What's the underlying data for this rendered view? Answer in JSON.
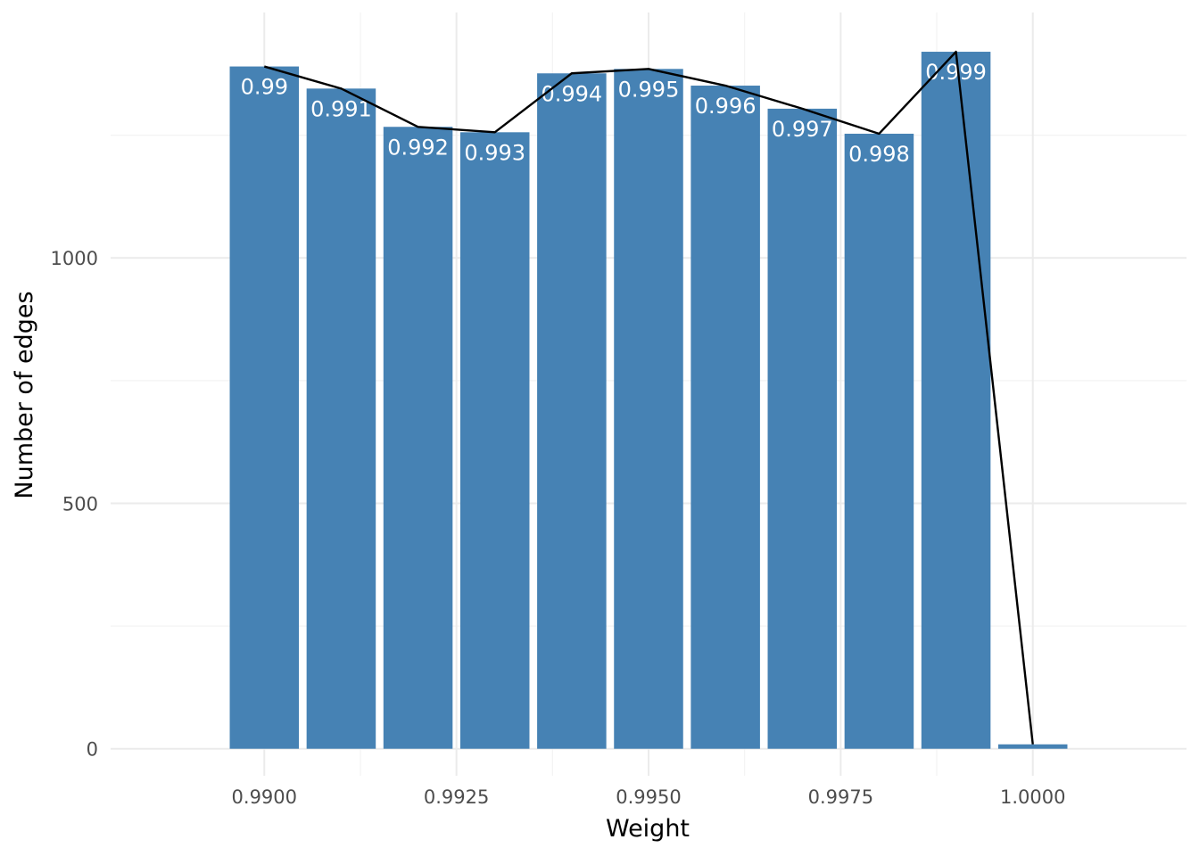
{
  "chart_data": {
    "type": "bar",
    "xlabel": "Weight",
    "ylabel": "Number of edges",
    "xlim": [
      0.988,
      1.002
    ],
    "ylim": [
      -55,
      1500
    ],
    "x_ticks": [
      "0.9900",
      "0.9925",
      "0.9950",
      "0.9975",
      "1.0000"
    ],
    "x_tick_values": [
      0.99,
      0.9925,
      0.995,
      0.9975,
      1.0
    ],
    "y_ticks": [
      "0",
      "500",
      "1000"
    ],
    "y_tick_values": [
      0,
      500,
      1000
    ],
    "grid": true,
    "bar_color": "#4682b4",
    "line_color": "#000000",
    "bar_width": 0.0009,
    "bars": [
      {
        "x": 0.99,
        "value": 1390,
        "label": "0.99"
      },
      {
        "x": 0.991,
        "value": 1345,
        "label": "0.991"
      },
      {
        "x": 0.992,
        "value": 1267,
        "label": "0.992"
      },
      {
        "x": 0.993,
        "value": 1256,
        "label": "0.993"
      },
      {
        "x": 0.994,
        "value": 1376,
        "label": "0.994"
      },
      {
        "x": 0.995,
        "value": 1385,
        "label": "0.995"
      },
      {
        "x": 0.996,
        "value": 1351,
        "label": "0.996"
      },
      {
        "x": 0.997,
        "value": 1304,
        "label": "0.997"
      },
      {
        "x": 0.998,
        "value": 1253,
        "label": "0.998"
      },
      {
        "x": 0.999,
        "value": 1420,
        "label": "0.999"
      },
      {
        "x": 1.0,
        "value": 9,
        "label": ""
      }
    ]
  }
}
